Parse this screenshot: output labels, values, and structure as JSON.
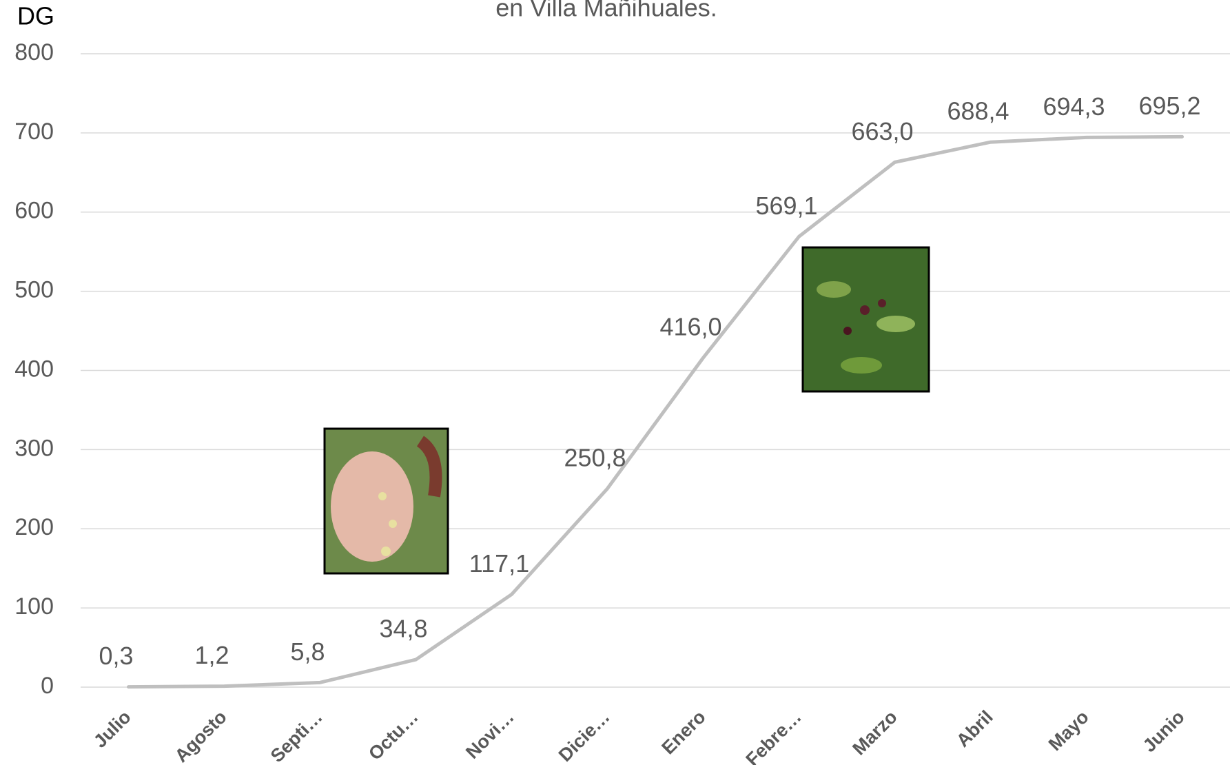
{
  "chart_data": {
    "type": "line",
    "title": "en Villa Mañihuales.",
    "y_label": "DG",
    "categories": [
      "Julio",
      "Agosto",
      "Septi…",
      "Octu…",
      "Novi…",
      "Dicie…",
      "Enero",
      "Febre…",
      "Marzo",
      "Abril",
      "Mayo",
      "Junio"
    ],
    "series": [
      {
        "name": "DG",
        "color": "#bfbfbf",
        "values": [
          0.3,
          1.2,
          5.8,
          34.8,
          117.1,
          250.8,
          416.0,
          569.1,
          663.0,
          688.4,
          694.3,
          695.2
        ],
        "value_labels": [
          "0,3",
          "1,2",
          "5,8",
          "34,8",
          "117,1",
          "250,8",
          "416,0",
          "569,1",
          "663,0",
          "688,4",
          "694,3",
          "695,2"
        ]
      }
    ],
    "ylim": [
      0,
      800
    ],
    "yticks": [
      0,
      100,
      200,
      300,
      400,
      500,
      600,
      700,
      800
    ],
    "grid": true
  }
}
